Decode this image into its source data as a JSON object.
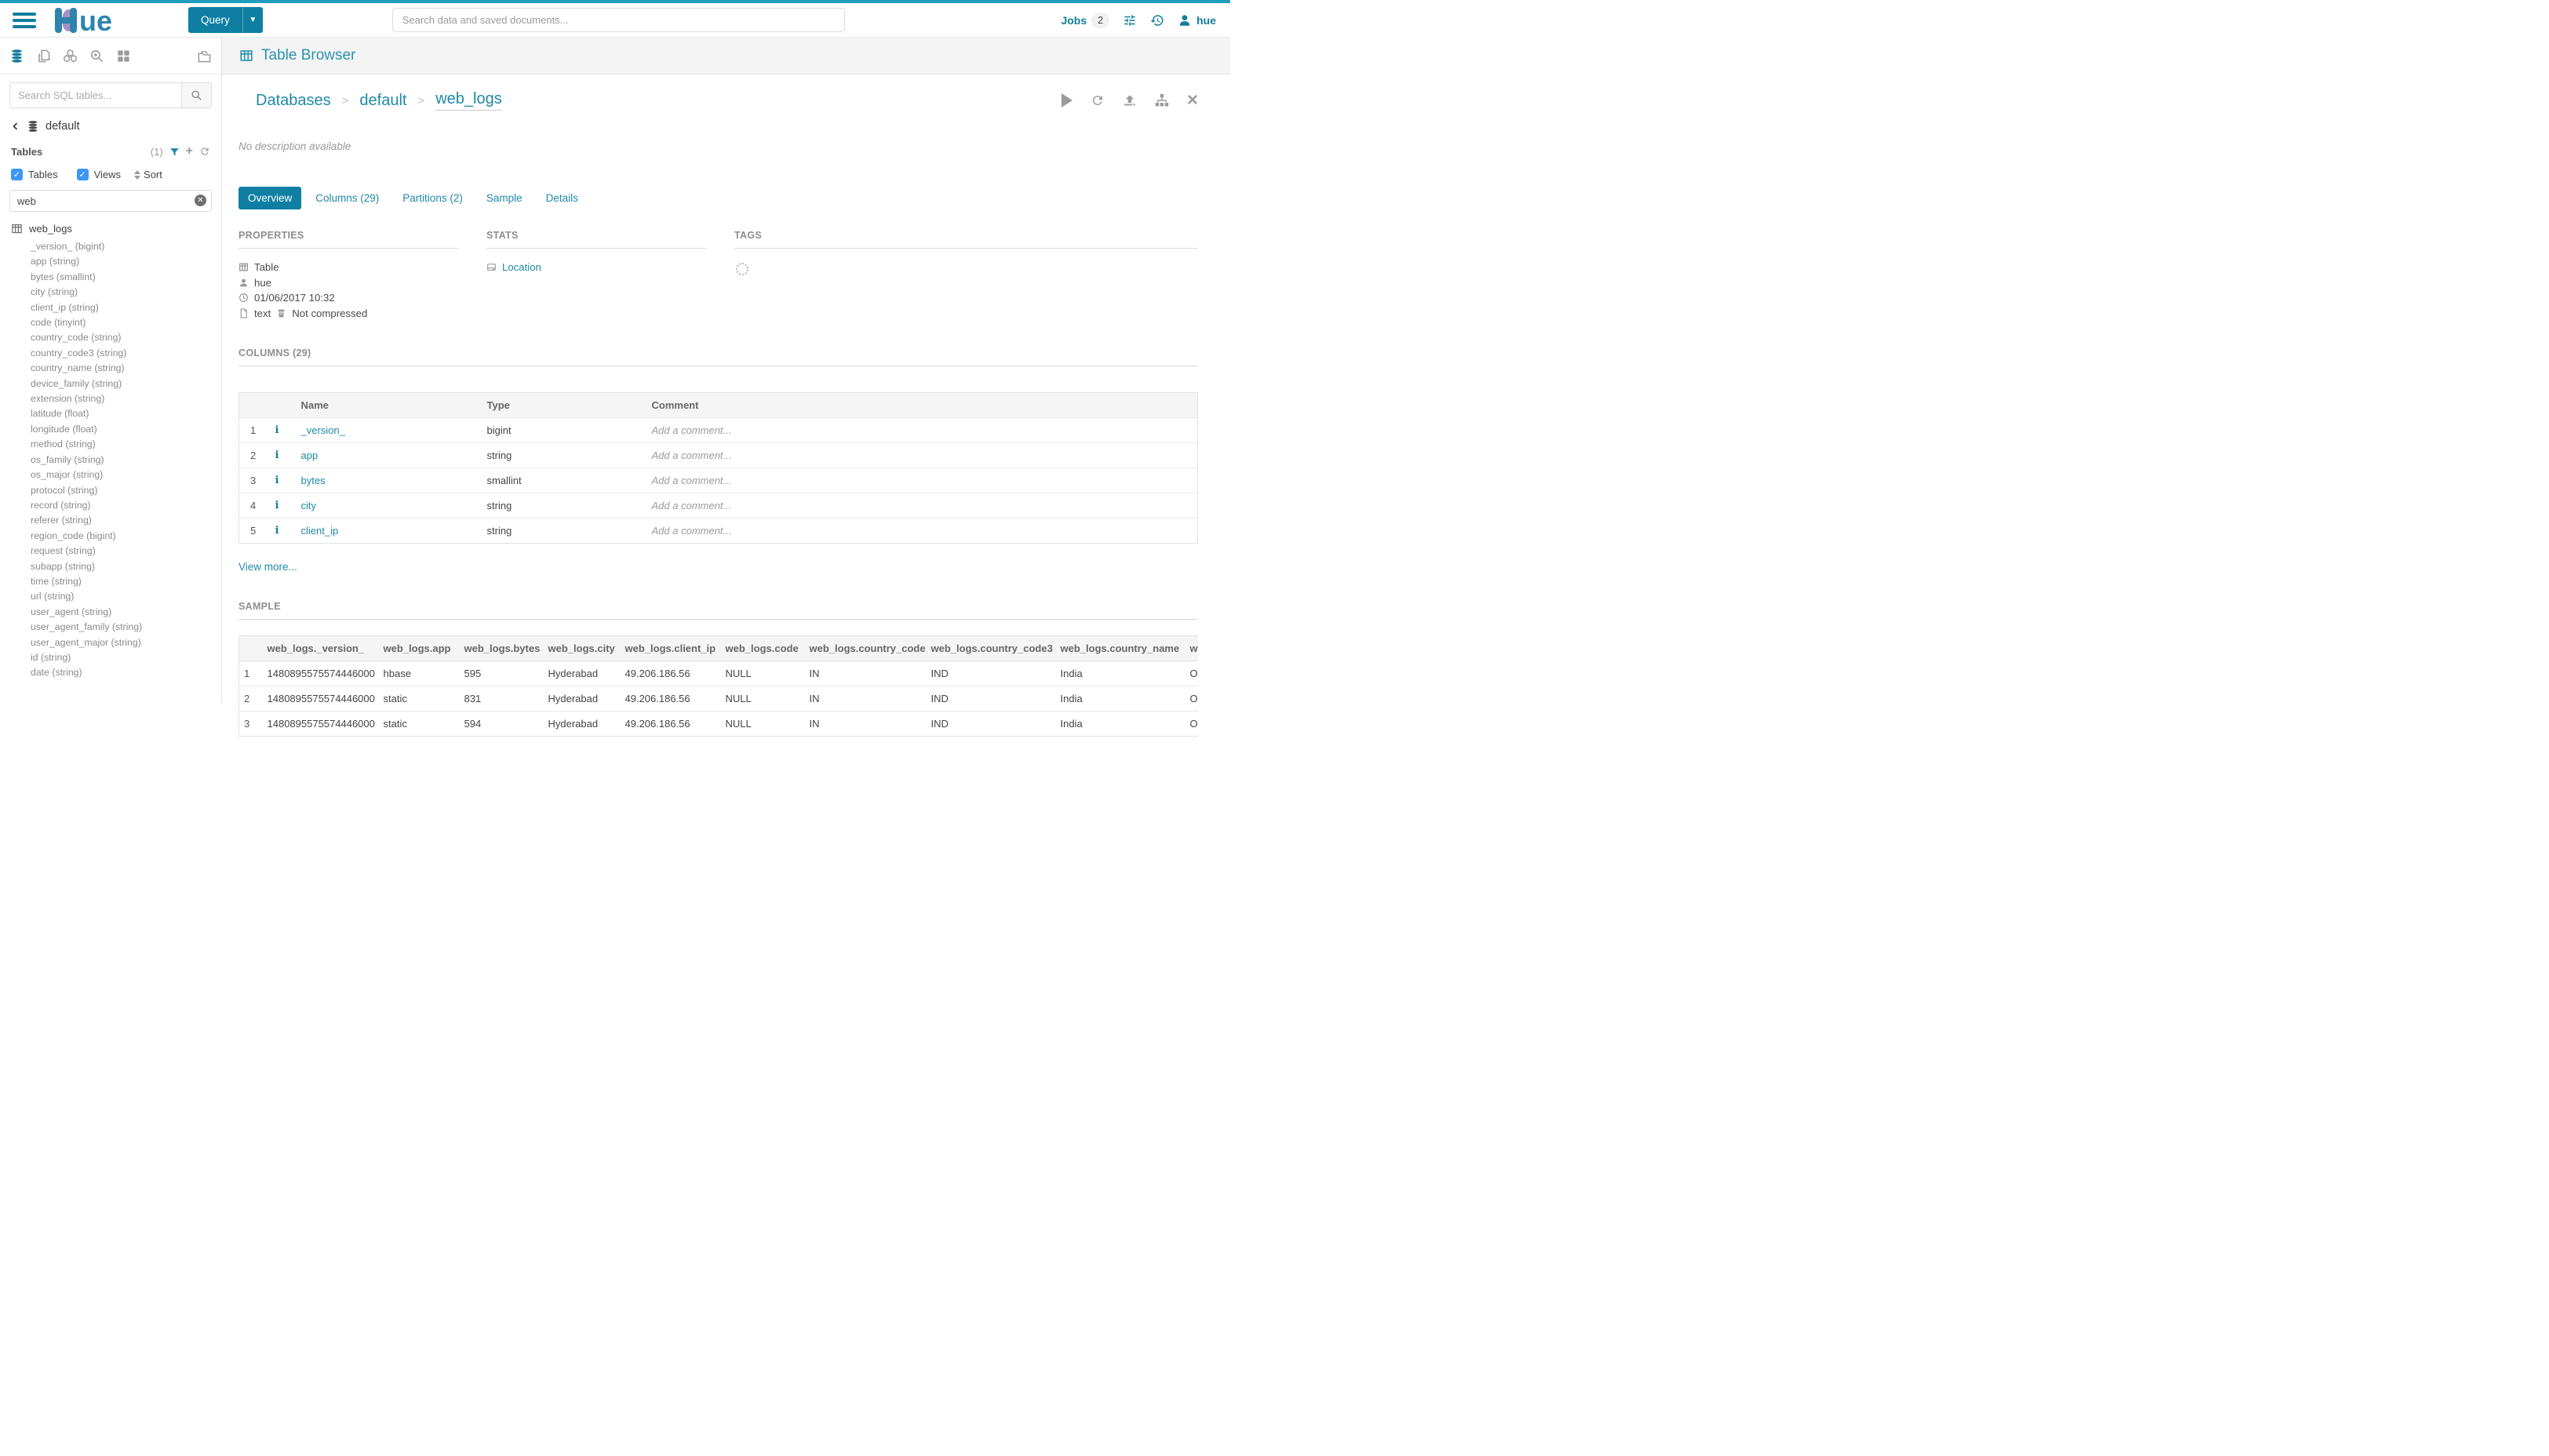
{
  "colors": {
    "brand_top_strip": "#1f9dbd",
    "primary_button": "#0e7fa3",
    "link_accent": "#1f89a7",
    "logo_purple": "#a98fc6",
    "checkbox_blue": "#3b97f2"
  },
  "topbar": {
    "query_button_label": "Query",
    "search_placeholder": "Search data and saved documents...",
    "jobs_label": "Jobs",
    "jobs_count": "2",
    "username": "hue"
  },
  "sidebar": {
    "search_placeholder": "Search SQL tables...",
    "database_name": "default",
    "tables_label": "Tables",
    "tables_count": "(1)",
    "checkbox_tables_label": "Tables",
    "checkbox_views_label": "Views",
    "sort_label": "Sort",
    "filter_value": "web",
    "table_name": "web_logs",
    "columns": [
      "_version_ (bigint)",
      "app (string)",
      "bytes (smallint)",
      "city (string)",
      "client_ip (string)",
      "code (tinyint)",
      "country_code (string)",
      "country_code3 (string)",
      "country_name (string)",
      "device_family (string)",
      "extension (string)",
      "latitude (float)",
      "longitude (float)",
      "method (string)",
      "os_family (string)",
      "os_major (string)",
      "protocol (string)",
      "record (string)",
      "referer (string)",
      "region_code (bigint)",
      "request (string)",
      "subapp (string)",
      "time (string)",
      "url (string)",
      "user_agent (string)",
      "user_agent_family (string)",
      "user_agent_major (string)",
      "id (string)",
      "date (string)"
    ]
  },
  "content": {
    "app_title": "Table Browser",
    "breadcrumb": {
      "items": [
        "Databases",
        "default",
        "web_logs"
      ]
    },
    "description": "No description available",
    "tabs": [
      {
        "label": "Overview",
        "active": true
      },
      {
        "label": "Columns (29)",
        "active": false
      },
      {
        "label": "Partitions (2)",
        "active": false
      },
      {
        "label": "Sample",
        "active": false
      },
      {
        "label": "Details",
        "active": false
      }
    ],
    "properties": {
      "title": "PROPERTIES",
      "type": "Table",
      "owner": "hue",
      "created": "01/06/2017 10:32",
      "format": "text",
      "compression": "Not compressed"
    },
    "stats": {
      "title": "STATS",
      "location_label": "Location"
    },
    "tags": {
      "title": "TAGS"
    },
    "columns_section": {
      "title": "COLUMNS (29)",
      "headers": [
        "Name",
        "Type",
        "Comment"
      ],
      "comment_placeholder": "Add a comment...",
      "rows": [
        {
          "num": "1",
          "name": "_version_",
          "type": "bigint"
        },
        {
          "num": "2",
          "name": "app",
          "type": "string"
        },
        {
          "num": "3",
          "name": "bytes",
          "type": "smallint"
        },
        {
          "num": "4",
          "name": "city",
          "type": "string"
        },
        {
          "num": "5",
          "name": "client_ip",
          "type": "string"
        }
      ],
      "view_more": "View more..."
    },
    "sample_section": {
      "title": "SAMPLE",
      "headers": [
        "web_logs._version_",
        "web_logs.app",
        "web_logs.bytes",
        "web_logs.city",
        "web_logs.client_ip",
        "web_logs.code",
        "web_logs.country_code",
        "web_logs.country_code3",
        "web_logs.country_name",
        "w"
      ],
      "rows": [
        [
          "1",
          "1480895575574446000",
          "hbase",
          "595",
          "Hyderabad",
          "49.206.186.56",
          "NULL",
          "IN",
          "IND",
          "India",
          "O"
        ],
        [
          "2",
          "1480895575574446000",
          "static",
          "831",
          "Hyderabad",
          "49.206.186.56",
          "NULL",
          "IN",
          "IND",
          "India",
          "O"
        ],
        [
          "3",
          "1480895575574446000",
          "static",
          "594",
          "Hyderabad",
          "49.206.186.56",
          "NULL",
          "IN",
          "IND",
          "India",
          "O"
        ]
      ]
    }
  }
}
